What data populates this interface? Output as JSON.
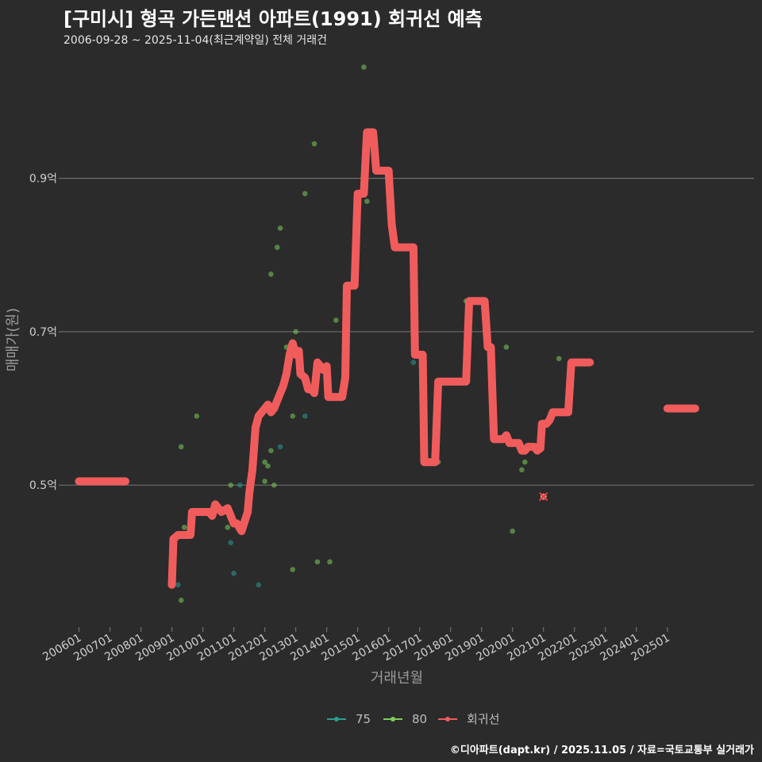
{
  "title": "[구미시] 형곡 가든맨션 아파트(1991) 회귀선 예측",
  "subtitle": "2006-09-28 ~ 2025-11-04(최근계약일) 전체 거래건",
  "footer": "©디아파트(dapt.kr) / 2025.11.05 / 자료=국토교통부 실거래가",
  "colors": {
    "background": "#2b2b2c",
    "grid": "#6e6e6e",
    "series_75": "#2a9d8f",
    "series_80": "#7ccd5a",
    "regression": "#f05c5c",
    "highlight": "#e63946"
  },
  "chart_data": {
    "type": "scatter",
    "xlabel": "거래년월",
    "ylabel": "매매가(원)",
    "xlim": [
      2005.5,
      2027.8
    ],
    "ylim": [
      0.315,
      1.06
    ],
    "y_ticks": [
      {
        "value": 0.5,
        "label": "0.5억"
      },
      {
        "value": 0.7,
        "label": "0.7억"
      },
      {
        "value": 0.9,
        "label": "0.9억"
      }
    ],
    "x_ticks": [
      {
        "value": 2006,
        "label": "200601"
      },
      {
        "value": 2007,
        "label": "200701"
      },
      {
        "value": 2008,
        "label": "200801"
      },
      {
        "value": 2009,
        "label": "200901"
      },
      {
        "value": 2010,
        "label": "201001"
      },
      {
        "value": 2011,
        "label": "201101"
      },
      {
        "value": 2012,
        "label": "201201"
      },
      {
        "value": 2013,
        "label": "201301"
      },
      {
        "value": 2014,
        "label": "201401"
      },
      {
        "value": 2015,
        "label": "201501"
      },
      {
        "value": 2016,
        "label": "201601"
      },
      {
        "value": 2017,
        "label": "201701"
      },
      {
        "value": 2018,
        "label": "201801"
      },
      {
        "value": 2019,
        "label": "201901"
      },
      {
        "value": 2020,
        "label": "202001"
      },
      {
        "value": 2021,
        "label": "202101"
      },
      {
        "value": 2022,
        "label": "202201"
      },
      {
        "value": 2023,
        "label": "202301"
      },
      {
        "value": 2024,
        "label": "202401"
      },
      {
        "value": 2025,
        "label": "202501"
      }
    ],
    "legend": [
      {
        "key": "75",
        "label": "75"
      },
      {
        "key": "80",
        "label": "80"
      },
      {
        "key": "reg",
        "label": "회귀선"
      }
    ],
    "series": [
      {
        "name": "75",
        "points": [
          [
            2009.2,
            0.37
          ],
          [
            2010.9,
            0.425
          ],
          [
            2011.0,
            0.385
          ],
          [
            2011.2,
            0.5
          ],
          [
            2011.8,
            0.37
          ],
          [
            2012.5,
            0.55
          ],
          [
            2013.3,
            0.59
          ],
          [
            2016.8,
            0.66
          ]
        ]
      },
      {
        "name": "80",
        "points": [
          [
            2009.3,
            0.55
          ],
          [
            2009.3,
            0.35
          ],
          [
            2009.4,
            0.445
          ],
          [
            2009.8,
            0.59
          ],
          [
            2010.8,
            0.445
          ],
          [
            2010.9,
            0.5
          ],
          [
            2012.0,
            0.53
          ],
          [
            2012.0,
            0.505
          ],
          [
            2012.1,
            0.525
          ],
          [
            2012.2,
            0.775
          ],
          [
            2012.2,
            0.545
          ],
          [
            2012.3,
            0.5
          ],
          [
            2012.4,
            0.81
          ],
          [
            2012.5,
            0.835
          ],
          [
            2012.7,
            0.68
          ],
          [
            2012.9,
            0.39
          ],
          [
            2012.9,
            0.59
          ],
          [
            2013.0,
            0.7
          ],
          [
            2013.3,
            0.88
          ],
          [
            2013.6,
            0.945
          ],
          [
            2013.7,
            0.4
          ],
          [
            2014.1,
            0.4
          ],
          [
            2014.3,
            0.715
          ],
          [
            2015.2,
            1.045
          ],
          [
            2015.3,
            0.87
          ],
          [
            2017.6,
            0.53
          ],
          [
            2018.5,
            0.74
          ],
          [
            2019.8,
            0.68
          ],
          [
            2020.0,
            0.44
          ],
          [
            2020.3,
            0.52
          ],
          [
            2020.4,
            0.53
          ],
          [
            2021.5,
            0.665
          ]
        ]
      }
    ],
    "highlight_point": [
      2021.0,
      0.485
    ],
    "regression": [
      [
        [
          2006.0,
          0.505
        ],
        [
          2007.5,
          0.505
        ]
      ],
      [
        [
          2009.0,
          0.37
        ],
        [
          2009.05,
          0.43
        ],
        [
          2009.2,
          0.435
        ],
        [
          2009.6,
          0.435
        ],
        [
          2009.65,
          0.465
        ],
        [
          2010.2,
          0.465
        ],
        [
          2010.3,
          0.46
        ],
        [
          2010.4,
          0.475
        ],
        [
          2010.6,
          0.465
        ],
        [
          2010.8,
          0.47
        ],
        [
          2011.0,
          0.45
        ],
        [
          2011.1,
          0.45
        ],
        [
          2011.25,
          0.44
        ],
        [
          2011.45,
          0.465
        ],
        [
          2011.5,
          0.49
        ],
        [
          2011.6,
          0.52
        ],
        [
          2011.7,
          0.575
        ],
        [
          2011.8,
          0.59
        ],
        [
          2012.0,
          0.6
        ],
        [
          2012.1,
          0.605
        ],
        [
          2012.2,
          0.595
        ],
        [
          2012.3,
          0.6
        ],
        [
          2012.4,
          0.61
        ],
        [
          2012.5,
          0.62
        ],
        [
          2012.6,
          0.63
        ],
        [
          2012.7,
          0.645
        ],
        [
          2012.8,
          0.67
        ],
        [
          2012.9,
          0.685
        ],
        [
          2013.0,
          0.67
        ],
        [
          2013.1,
          0.675
        ],
        [
          2013.15,
          0.645
        ],
        [
          2013.3,
          0.64
        ],
        [
          2013.4,
          0.625
        ],
        [
          2013.5,
          0.625
        ],
        [
          2013.6,
          0.62
        ],
        [
          2013.7,
          0.66
        ],
        [
          2013.8,
          0.655
        ],
        [
          2013.9,
          0.65
        ],
        [
          2014.0,
          0.655
        ],
        [
          2014.05,
          0.615
        ],
        [
          2014.5,
          0.615
        ],
        [
          2014.6,
          0.64
        ],
        [
          2014.65,
          0.76
        ],
        [
          2014.9,
          0.76
        ],
        [
          2015.0,
          0.88
        ],
        [
          2015.2,
          0.88
        ],
        [
          2015.3,
          0.96
        ],
        [
          2015.5,
          0.96
        ],
        [
          2015.6,
          0.91
        ],
        [
          2016.0,
          0.91
        ],
        [
          2016.1,
          0.84
        ],
        [
          2016.2,
          0.81
        ],
        [
          2016.8,
          0.81
        ],
        [
          2016.85,
          0.67
        ],
        [
          2017.1,
          0.67
        ],
        [
          2017.15,
          0.53
        ],
        [
          2017.5,
          0.53
        ],
        [
          2017.6,
          0.635
        ],
        [
          2018.5,
          0.635
        ],
        [
          2018.6,
          0.74
        ],
        [
          2019.1,
          0.74
        ],
        [
          2019.2,
          0.68
        ],
        [
          2019.3,
          0.68
        ],
        [
          2019.4,
          0.56
        ],
        [
          2019.7,
          0.56
        ],
        [
          2019.8,
          0.565
        ],
        [
          2019.9,
          0.555
        ],
        [
          2020.2,
          0.555
        ],
        [
          2020.3,
          0.545
        ],
        [
          2020.4,
          0.545
        ],
        [
          2020.5,
          0.55
        ],
        [
          2020.7,
          0.55
        ],
        [
          2020.8,
          0.545
        ],
        [
          2020.9,
          0.548
        ],
        [
          2020.95,
          0.58
        ],
        [
          2021.1,
          0.58
        ],
        [
          2021.2,
          0.585
        ],
        [
          2021.3,
          0.595
        ],
        [
          2021.8,
          0.595
        ],
        [
          2021.9,
          0.66
        ],
        [
          2022.2,
          0.66
        ],
        [
          2022.3,
          0.66
        ],
        [
          2022.5,
          0.66
        ]
      ],
      [
        [
          2025.0,
          0.6
        ],
        [
          2025.9,
          0.6
        ]
      ]
    ]
  }
}
